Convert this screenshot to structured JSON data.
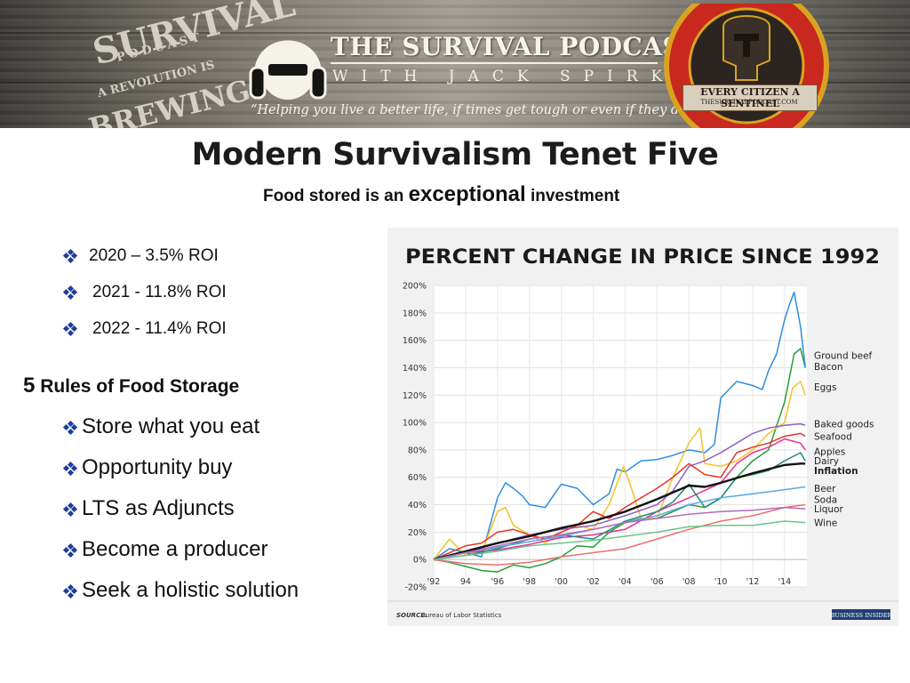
{
  "header": {
    "brand_title": "THE SURVIVAL PODCAST",
    "brand_sub": "WITH JACK SPIRKO",
    "tagline": "“Helping you live a better life, if times get tough or even if they don’t.”",
    "left_logo_words": [
      "SURVIVAL",
      "PODCAST",
      "A REVOLUTION IS",
      "BREWING"
    ],
    "seal_text": "EVERY CITIZEN A SENTINEL",
    "seal_url": "THESURVIVALPODCAST.COM",
    "colors": {
      "banner": "#8c877d",
      "seal_red": "#c8281e",
      "seal_gold": "#d9a322"
    }
  },
  "slide": {
    "title": "Modern Survivalism Tenet Five",
    "subtitle_pre": "Food stored is an ",
    "subtitle_em": "exceptional",
    "subtitle_post": " investment",
    "roi": [
      "2020 – 3.5% ROI",
      "2021 - 11.8% ROI",
      "2022 - 11.4% ROI"
    ],
    "rules_num": "5",
    "rules_title": " Rules of Food Storage",
    "rules": [
      "Store what you eat",
      "Opportunity buy",
      "LTS as Adjuncts",
      "Become a producer",
      "Seek a holistic solution"
    ],
    "bullet_color": "#1f3d9a"
  },
  "chart_data": {
    "type": "line",
    "title": "PERCENT CHANGE IN PRICE SINCE 1992",
    "source_label": "SOURCE:",
    "source_text": "Bureau of Labor Statistics",
    "brand": "BUSINESS INSIDER",
    "xlabel": "",
    "ylabel": "",
    "xlim": [
      1992,
      2015.4
    ],
    "ylim": [
      -20,
      200
    ],
    "x_ticks": [
      1992,
      1994,
      1996,
      1998,
      2000,
      2002,
      2004,
      2006,
      2008,
      2010,
      2012,
      2014
    ],
    "x_tick_labels": [
      "'92",
      "94",
      "'96",
      "'98",
      "'00",
      "'02",
      "'04",
      "'06",
      "'08",
      "'10",
      "'12",
      "'14"
    ],
    "y_ticks": [
      -20,
      0,
      20,
      40,
      60,
      80,
      100,
      120,
      140,
      160,
      180,
      200
    ],
    "y_tick_labels": [
      "-20%",
      "0%",
      "20%",
      "40%",
      "60%",
      "80%",
      "100%",
      "120%",
      "140%",
      "160%",
      "180%",
      "200%"
    ],
    "grid": true,
    "legend": "right-end labels",
    "series": [
      {
        "name": "Ground beef",
        "color": "#2a9d3c",
        "x": [
          1992,
          1993,
          1994,
          1995,
          1996,
          1997,
          1998,
          1999,
          2000,
          2001,
          2002,
          2003,
          2004,
          2005,
          2006,
          2007,
          2008,
          2009,
          2010,
          2011,
          2012,
          2013,
          2014,
          2014.6,
          2015,
          2015.3
        ],
        "y": [
          0,
          -2,
          -5,
          -8,
          -9,
          -4,
          -6,
          -3,
          2,
          10,
          9,
          20,
          27,
          30,
          30,
          35,
          40,
          38,
          45,
          60,
          72,
          80,
          115,
          150,
          154,
          140
        ]
      },
      {
        "name": "Bacon",
        "color": "#2f8de0",
        "x": [
          1992,
          1993,
          1994,
          1995,
          1996,
          1996.5,
          1997,
          1997.6,
          1998,
          1999,
          2000,
          2001,
          2002,
          2003,
          2003.5,
          2004,
          2005,
          2006,
          2007,
          2008,
          2009,
          2009.6,
          2010,
          2011,
          2012,
          2012.6,
          2013,
          2013.5,
          2014,
          2014.3,
          2014.6,
          2015,
          2015.3
        ],
        "y": [
          0,
          8,
          5,
          2,
          45,
          56,
          52,
          46,
          40,
          38,
          55,
          52,
          40,
          48,
          66,
          64,
          72,
          73,
          76,
          80,
          78,
          84,
          118,
          130,
          127,
          124,
          138,
          150,
          175,
          186,
          195,
          170,
          140
        ]
      },
      {
        "name": "Eggs",
        "color": "#f4c12a",
        "x": [
          1992,
          1993,
          1994,
          1995,
          1996,
          1996.5,
          1997,
          1998,
          1999,
          2000,
          2001,
          2002,
          2003,
          2003.9,
          2004.4,
          2005,
          2006,
          2007,
          2008,
          2008.7,
          2009,
          2010,
          2011,
          2012,
          2013,
          2014,
          2014.5,
          2015,
          2015.3
        ],
        "y": [
          0,
          15,
          3,
          5,
          35,
          38,
          25,
          18,
          12,
          20,
          25,
          22,
          40,
          68,
          52,
          30,
          30,
          60,
          85,
          96,
          70,
          68,
          72,
          80,
          92,
          100,
          125,
          130,
          120
        ]
      },
      {
        "name": "Baked goods",
        "color": "#8e5fc7",
        "x": [
          1992,
          1994,
          1996,
          1998,
          2000,
          2002,
          2004,
          2006,
          2007,
          2008,
          2009,
          2010,
          2011,
          2012,
          2013,
          2014,
          2015,
          2015.3
        ],
        "y": [
          0,
          5,
          12,
          18,
          22,
          25,
          32,
          40,
          50,
          68,
          72,
          78,
          85,
          92,
          96,
          98,
          99,
          98
        ]
      },
      {
        "name": "Seafood",
        "color": "#e8328c",
        "x": [
          1992,
          1994,
          1996,
          1998,
          2000,
          2002,
          2004,
          2006,
          2008,
          2010,
          2011,
          2012,
          2013,
          2014,
          2015,
          2015.3
        ],
        "y": [
          0,
          5,
          7,
          11,
          16,
          18,
          22,
          35,
          45,
          56,
          70,
          78,
          82,
          88,
          85,
          80
        ]
      },
      {
        "name": "Apples",
        "color": "#e0382a",
        "x": [
          1992,
          1993,
          1994,
          1995,
          1996,
          1997,
          1998,
          1999,
          2000,
          2001,
          2002,
          2003,
          2004,
          2005,
          2006,
          2007,
          2008,
          2009,
          2010,
          2011,
          2012,
          2013,
          2014,
          2015,
          2015.3
        ],
        "y": [
          0,
          5,
          10,
          12,
          20,
          22,
          18,
          15,
          20,
          25,
          35,
          30,
          38,
          45,
          52,
          60,
          70,
          62,
          60,
          78,
          82,
          85,
          90,
          92,
          90
        ]
      },
      {
        "name": "Dairy",
        "color": "#1f8a7a",
        "x": [
          1992,
          1994,
          1996,
          1998,
          2000,
          2002,
          2004,
          2006,
          2007,
          2008,
          2009,
          2010,
          2011,
          2012,
          2013,
          2014,
          2015,
          2015.3
        ],
        "y": [
          0,
          3,
          8,
          15,
          18,
          15,
          28,
          35,
          42,
          55,
          38,
          45,
          60,
          62,
          65,
          72,
          78,
          72
        ]
      },
      {
        "name": "Inflation",
        "color": "#111111",
        "x": [
          1992,
          1994,
          1996,
          1998,
          2000,
          2002,
          2004,
          2006,
          2008,
          2009,
          2010,
          2012,
          2014,
          2015,
          2015.3
        ],
        "y": [
          0,
          6,
          12,
          17,
          23,
          28,
          35,
          44,
          54,
          53,
          56,
          63,
          69,
          70,
          70
        ]
      },
      {
        "name": "Beer",
        "color": "#57a8e8",
        "x": [
          1992,
          1994,
          1996,
          1998,
          2000,
          2002,
          2004,
          2006,
          2008,
          2010,
          2012,
          2014,
          2015.3
        ],
        "y": [
          0,
          5,
          9,
          13,
          17,
          22,
          27,
          32,
          40,
          45,
          48,
          51,
          53
        ]
      },
      {
        "name": "Soda",
        "color": "#e8736e",
        "x": [
          1992,
          1994,
          1996,
          1998,
          2000,
          2002,
          2004,
          2006,
          2008,
          2010,
          2012,
          2014,
          2015.3
        ],
        "y": [
          0,
          -3,
          -4,
          -2,
          2,
          5,
          8,
          15,
          22,
          28,
          32,
          38,
          40
        ]
      },
      {
        "name": "Liquor",
        "color": "#b56ab8",
        "x": [
          1992,
          1994,
          1996,
          1998,
          2000,
          2002,
          2004,
          2006,
          2008,
          2010,
          2012,
          2014,
          2015.3
        ],
        "y": [
          0,
          5,
          10,
          15,
          18,
          22,
          27,
          30,
          33,
          35,
          36,
          38,
          37
        ]
      },
      {
        "name": "Wine",
        "color": "#6cc48a",
        "x": [
          1992,
          1994,
          1996,
          1998,
          2000,
          2002,
          2004,
          2006,
          2008,
          2010,
          2012,
          2014,
          2015.3
        ],
        "y": [
          0,
          3,
          6,
          10,
          12,
          14,
          17,
          20,
          24,
          25,
          25,
          28,
          27
        ]
      }
    ],
    "end_labels": [
      {
        "text": "Ground beef",
        "value": 149
      },
      {
        "text": "Bacon",
        "value": 141
      },
      {
        "text": "Eggs",
        "value": 126
      },
      {
        "text": "Baked goods",
        "value": 99
      },
      {
        "text": "Seafood",
        "value": 90
      },
      {
        "text": "Apples",
        "value": 79
      },
      {
        "text": "Dairy",
        "value": 72
      },
      {
        "text": "Inflation",
        "value": 65
      },
      {
        "text": "Beer",
        "value": 52
      },
      {
        "text": "Soda",
        "value": 44
      },
      {
        "text": "Liquor",
        "value": 37
      },
      {
        "text": "Wine",
        "value": 27
      }
    ]
  }
}
